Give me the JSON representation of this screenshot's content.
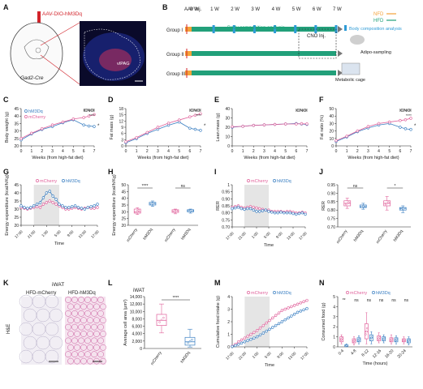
{
  "figure": {
    "panel_letters": [
      "A",
      "B",
      "C",
      "D",
      "E",
      "F",
      "G",
      "H",
      "I",
      "J",
      "K",
      "L",
      "M",
      "N"
    ],
    "colors": {
      "mCherry": "#e0609a",
      "hM3Dq": "#3a7fc2",
      "hfd_bar": "#22a07a",
      "cno_box": "#222222",
      "shade": "#dedede",
      "nfd": "#f4a23a",
      "group_border": "#888888"
    }
  },
  "panel_a": {
    "virus_label": "AAV-DIO-hM3Dq",
    "mouse_label": "Gad2-Cre",
    "region_label": "vIPAG",
    "scale_label": ""
  },
  "panel_b": {
    "aav_label": "AAV Inj.",
    "weeks": [
      "0 W",
      "1 W",
      "2 W",
      "3 W",
      "4 W",
      "5 W",
      "6 W",
      "7 W"
    ],
    "groups": [
      "Group I",
      "Group II",
      "Group III"
    ],
    "body_comp_text": "Body composition analysis",
    "cno_text": "CNO Inj.",
    "legend": {
      "nfd": "NFD",
      "hfd": "HFD",
      "body": "Body composition analysis"
    },
    "adipo_text": "Adipo-sampling",
    "cage_text": "Metabolic cage"
  },
  "shared": {
    "xlabel_weeks": "Weeks (from high-fat diet)",
    "series_names": [
      "hM3Dq",
      "mCherry"
    ],
    "cno_label": "CNO",
    "sig4": "****",
    "sig1": "*",
    "sig2": "**",
    "ns": "ns",
    "time": "Time",
    "iwat": "iWAT"
  },
  "chart_data": [
    {
      "id": "C",
      "type": "line",
      "xlabel": "Weeks (from high-fat diet)",
      "ylabel": "Body weight (g)",
      "x": [
        0,
        1,
        2,
        3,
        4,
        5,
        6,
        6.5,
        7
      ],
      "ylim": [
        20,
        45
      ],
      "yticks": [
        20,
        25,
        30,
        35,
        40,
        45
      ],
      "xticks": [
        0,
        1,
        2,
        3,
        4,
        5,
        6,
        7
      ],
      "series": [
        {
          "name": "hM3Dq",
          "values": [
            24,
            28,
            31,
            33,
            35.5,
            37.5,
            34,
            33.3,
            33
          ]
        },
        {
          "name": "mCherry",
          "values": [
            25,
            28.5,
            31.5,
            34,
            36,
            38,
            39,
            40,
            41
          ]
        }
      ],
      "legend": "top-left"
    },
    {
      "id": "D",
      "type": "line",
      "xlabel": "Weeks (from high-fat diet)",
      "ylabel": "Fat mass (g)",
      "x": [
        0,
        1,
        2,
        3,
        4,
        5,
        6,
        6.5,
        7
      ],
      "ylim": [
        0,
        18
      ],
      "yticks": [
        0,
        3,
        6,
        9,
        12,
        15,
        18
      ],
      "xticks": [
        0,
        1,
        2,
        3,
        4,
        5,
        6,
        7
      ],
      "series": [
        {
          "name": "hM3Dq",
          "values": [
            1.5,
            3.5,
            6,
            8,
            10,
            11.5,
            8.5,
            8,
            7.5
          ]
        },
        {
          "name": "mCherry",
          "values": [
            2,
            4,
            6.5,
            9,
            11,
            12.5,
            14,
            14.8,
            15.5
          ]
        }
      ]
    },
    {
      "id": "E",
      "type": "line",
      "xlabel": "Weeks (from high-fat diet)",
      "ylabel": "Lean mass (g)",
      "x": [
        0,
        1,
        2,
        3,
        4,
        5,
        6,
        6.5,
        7
      ],
      "ylim": [
        0,
        40
      ],
      "yticks": [
        0,
        10,
        20,
        30,
        40
      ],
      "xticks": [
        0,
        1,
        2,
        3,
        4,
        5,
        6,
        7
      ],
      "series": [
        {
          "name": "hM3Dq",
          "values": [
            20,
            21,
            22,
            22.5,
            23,
            23.5,
            24,
            23.5,
            23
          ]
        },
        {
          "name": "mCherry",
          "values": [
            20.5,
            21,
            22,
            22.5,
            23,
            23.5,
            23.5,
            23.8,
            23.5
          ]
        }
      ]
    },
    {
      "id": "F",
      "type": "line",
      "xlabel": "Weeks (from high-fat diet)",
      "ylabel": "Fat ratio (%)",
      "x": [
        0,
        1,
        2,
        3,
        4,
        5,
        6,
        6.5,
        7
      ],
      "ylim": [
        0,
        50
      ],
      "yticks": [
        0,
        10,
        20,
        30,
        40,
        50
      ],
      "xticks": [
        0,
        1,
        2,
        3,
        4,
        5,
        6,
        7
      ],
      "series": [
        {
          "name": "hM3Dq",
          "values": [
            6,
            12,
            19,
            24,
            28,
            30,
            25,
            23,
            22
          ]
        },
        {
          "name": "mCherry",
          "values": [
            7,
            13,
            20,
            26,
            30,
            32,
            34,
            35,
            37
          ]
        }
      ]
    },
    {
      "id": "G",
      "type": "line",
      "xlabel": "Time",
      "ylabel": "Energy expenditure (kcal/h/Kg)",
      "xticklabels": [
        "17:00",
        "21:00",
        "1:00",
        "5:00",
        "9:00",
        "13:00",
        "17:00"
      ],
      "ylim": [
        20,
        45
      ],
      "yticks": [
        20,
        25,
        30,
        35,
        40,
        45
      ],
      "legend": "top",
      "series": [
        {
          "name": "mCherry",
          "values": [
            31,
            30.5,
            30,
            30.5,
            31,
            31.5,
            31,
            33,
            34,
            35,
            34,
            33,
            32,
            31,
            30,
            30,
            30.5,
            31,
            30.5,
            30,
            30.5,
            31,
            30.5,
            30.5,
            31
          ]
        },
        {
          "name": "hM3Dq",
          "values": [
            32,
            31,
            30.5,
            31,
            32,
            33,
            34,
            37,
            40,
            41,
            38,
            36,
            33,
            32,
            31,
            31,
            31.5,
            32,
            31,
            30.5,
            30,
            31,
            31.5,
            32,
            33
          ]
        }
      ]
    },
    {
      "id": "H",
      "type": "box",
      "ylabel": "Energy expenditure (kcal/h/Kg)",
      "ylim": [
        20,
        50
      ],
      "yticks": [
        20,
        25,
        30,
        35,
        40,
        45,
        50
      ],
      "categories": [
        "mCherry",
        "hM3Dq",
        "mCherry",
        "hM3Dq"
      ],
      "boxes": [
        {
          "min": 28,
          "q1": 29,
          "median": 30,
          "q3": 32,
          "max": 33
        },
        {
          "min": 34,
          "q1": 35,
          "median": 36,
          "q3": 37,
          "max": 38
        },
        {
          "min": 28.5,
          "q1": 29.5,
          "median": 30.5,
          "q3": 31.5,
          "max": 32
        },
        {
          "min": 29,
          "q1": 30,
          "median": 30.8,
          "q3": 31.5,
          "max": 32
        }
      ],
      "significance": [
        "****",
        "ns"
      ]
    },
    {
      "id": "I",
      "type": "line",
      "xlabel": "Time",
      "ylabel": "RER",
      "xticklabels": [
        "17:00",
        "21:00",
        "1:00",
        "5:00",
        "9:00",
        "13:00",
        "17:00"
      ],
      "ylim": [
        0.7,
        1.0
      ],
      "yticks": [
        0.7,
        0.75,
        0.8,
        0.85,
        0.9,
        0.95,
        1.0
      ],
      "legend": "top",
      "series": [
        {
          "name": "mCherry",
          "values": [
            0.84,
            0.845,
            0.85,
            0.84,
            0.835,
            0.84,
            0.845,
            0.84,
            0.835,
            0.83,
            0.825,
            0.82,
            0.82,
            0.81,
            0.81,
            0.81,
            0.81,
            0.805,
            0.81,
            0.81,
            0.805,
            0.8,
            0.8,
            0.805,
            0.8
          ]
        },
        {
          "name": "hM3Dq",
          "values": [
            0.83,
            0.835,
            0.84,
            0.83,
            0.825,
            0.83,
            0.83,
            0.82,
            0.81,
            0.81,
            0.815,
            0.82,
            0.81,
            0.805,
            0.8,
            0.8,
            0.805,
            0.8,
            0.8,
            0.8,
            0.795,
            0.79,
            0.795,
            0.8,
            0.79
          ]
        }
      ]
    },
    {
      "id": "J",
      "type": "box",
      "ylabel": "RER",
      "ylim": [
        0.7,
        0.95
      ],
      "yticks": [
        0.7,
        0.75,
        0.8,
        0.85,
        0.9,
        0.95
      ],
      "categories": [
        "mCherry",
        "hM3Dq",
        "mCherry",
        "hM3Dq"
      ],
      "boxes": [
        {
          "min": 0.81,
          "q1": 0.825,
          "median": 0.84,
          "q3": 0.855,
          "max": 0.87
        },
        {
          "min": 0.805,
          "q1": 0.815,
          "median": 0.82,
          "q3": 0.83,
          "max": 0.84
        },
        {
          "min": 0.8,
          "q1": 0.825,
          "median": 0.84,
          "q3": 0.855,
          "max": 0.88
        },
        {
          "min": 0.785,
          "q1": 0.8,
          "median": 0.81,
          "q3": 0.815,
          "max": 0.825
        }
      ],
      "significance": [
        "ns",
        "*"
      ]
    },
    {
      "id": "L",
      "type": "box",
      "title": "iWAT",
      "ylabel": "Average cell area (μm²)",
      "ylim": [
        0,
        14000
      ],
      "yticks": [
        0,
        2000,
        4000,
        6000,
        8000,
        10000,
        12000,
        14000
      ],
      "yticklabels": [
        "0",
        "2,000",
        "4,000",
        "6,000",
        "8,000",
        "10,000",
        "12,000",
        "14,000"
      ],
      "categories": [
        "mCherry",
        "hM3Dq"
      ],
      "boxes": [
        {
          "min": 4200,
          "q1": 6200,
          "median": 7600,
          "q3": 9200,
          "max": 12000
        },
        {
          "min": 400,
          "q1": 900,
          "median": 1800,
          "q3": 3000,
          "max": 5200
        }
      ],
      "significance": [
        "****"
      ]
    },
    {
      "id": "M",
      "type": "line",
      "xlabel": "Time",
      "ylabel": "Cumulative food intake (g)",
      "xticklabels": [
        "17:00",
        "21:00",
        "1:00",
        "5:00",
        "9:00",
        "13:00",
        "17:00"
      ],
      "ylim": [
        0,
        4
      ],
      "yticks": [
        0,
        1,
        2,
        3,
        4
      ],
      "legend": "top",
      "series": [
        {
          "name": "mCherry",
          "values": [
            0.05,
            0.2,
            0.4,
            0.55,
            0.7,
            0.85,
            1.0,
            1.15,
            1.3,
            1.5,
            1.7,
            1.9,
            2.1,
            2.3,
            2.5,
            2.7,
            2.9,
            3.0,
            3.1,
            3.2,
            3.3,
            3.4,
            3.5,
            3.6,
            3.7
          ]
        },
        {
          "name": "hM3Dq",
          "values": [
            0.03,
            0.1,
            0.2,
            0.3,
            0.4,
            0.5,
            0.6,
            0.7,
            0.8,
            0.95,
            1.1,
            1.25,
            1.4,
            1.55,
            1.7,
            1.85,
            2.0,
            2.15,
            2.3,
            2.45,
            2.6,
            2.75,
            2.85,
            2.95,
            3.05
          ]
        }
      ]
    },
    {
      "id": "N",
      "type": "box",
      "xlabel": "Time (hours)",
      "ylabel": "Consumed food (g)",
      "ylim": [
        0,
        5
      ],
      "yticks": [
        0,
        1,
        2,
        3,
        4,
        5
      ],
      "legend": "top",
      "categories": [
        "0-4",
        "4-8",
        "8-12",
        "12-16",
        "16-20",
        "20-24"
      ],
      "series": [
        {
          "name": "mCherry",
          "boxes": [
            {
              "min": 0.3,
              "q1": 0.5,
              "median": 0.8,
              "q3": 1.0,
              "max": 1.2
            },
            {
              "min": 0.2,
              "q1": 0.4,
              "median": 0.6,
              "q3": 0.8,
              "max": 1.0
            },
            {
              "min": 0.3,
              "q1": 0.8,
              "median": 1.5,
              "q3": 2.3,
              "max": 3.4
            },
            {
              "min": 0.4,
              "q1": 0.6,
              "median": 0.8,
              "q3": 1.1,
              "max": 1.4
            },
            {
              "min": 0.3,
              "q1": 0.5,
              "median": 0.7,
              "q3": 0.9,
              "max": 1.2
            },
            {
              "min": 0.3,
              "q1": 0.5,
              "median": 0.6,
              "q3": 0.8,
              "max": 1.0
            }
          ]
        },
        {
          "name": "hM3Dq",
          "boxes": [
            {
              "min": 0.0,
              "q1": 0.05,
              "median": 0.1,
              "q3": 0.2,
              "max": 0.3
            },
            {
              "min": 0.3,
              "q1": 0.5,
              "median": 0.7,
              "q3": 0.9,
              "max": 1.1
            },
            {
              "min": 0.3,
              "q1": 0.6,
              "median": 0.9,
              "q3": 1.2,
              "max": 1.5
            },
            {
              "min": 0.4,
              "q1": 0.6,
              "median": 0.8,
              "q3": 1.0,
              "max": 1.2
            },
            {
              "min": 0.3,
              "q1": 0.5,
              "median": 0.7,
              "q3": 0.9,
              "max": 1.1
            },
            {
              "min": 0.2,
              "q1": 0.4,
              "median": 0.6,
              "q3": 0.8,
              "max": 1.0
            }
          ]
        }
      ],
      "significance": [
        "**",
        "ns",
        "ns",
        "ns",
        "ns",
        "ns"
      ]
    }
  ],
  "panel_k": {
    "left_label": "HFD-mCherry",
    "right_label": "HFD-hM3Dq",
    "stain_label": "H&E",
    "tissue_label": "iWAT"
  }
}
